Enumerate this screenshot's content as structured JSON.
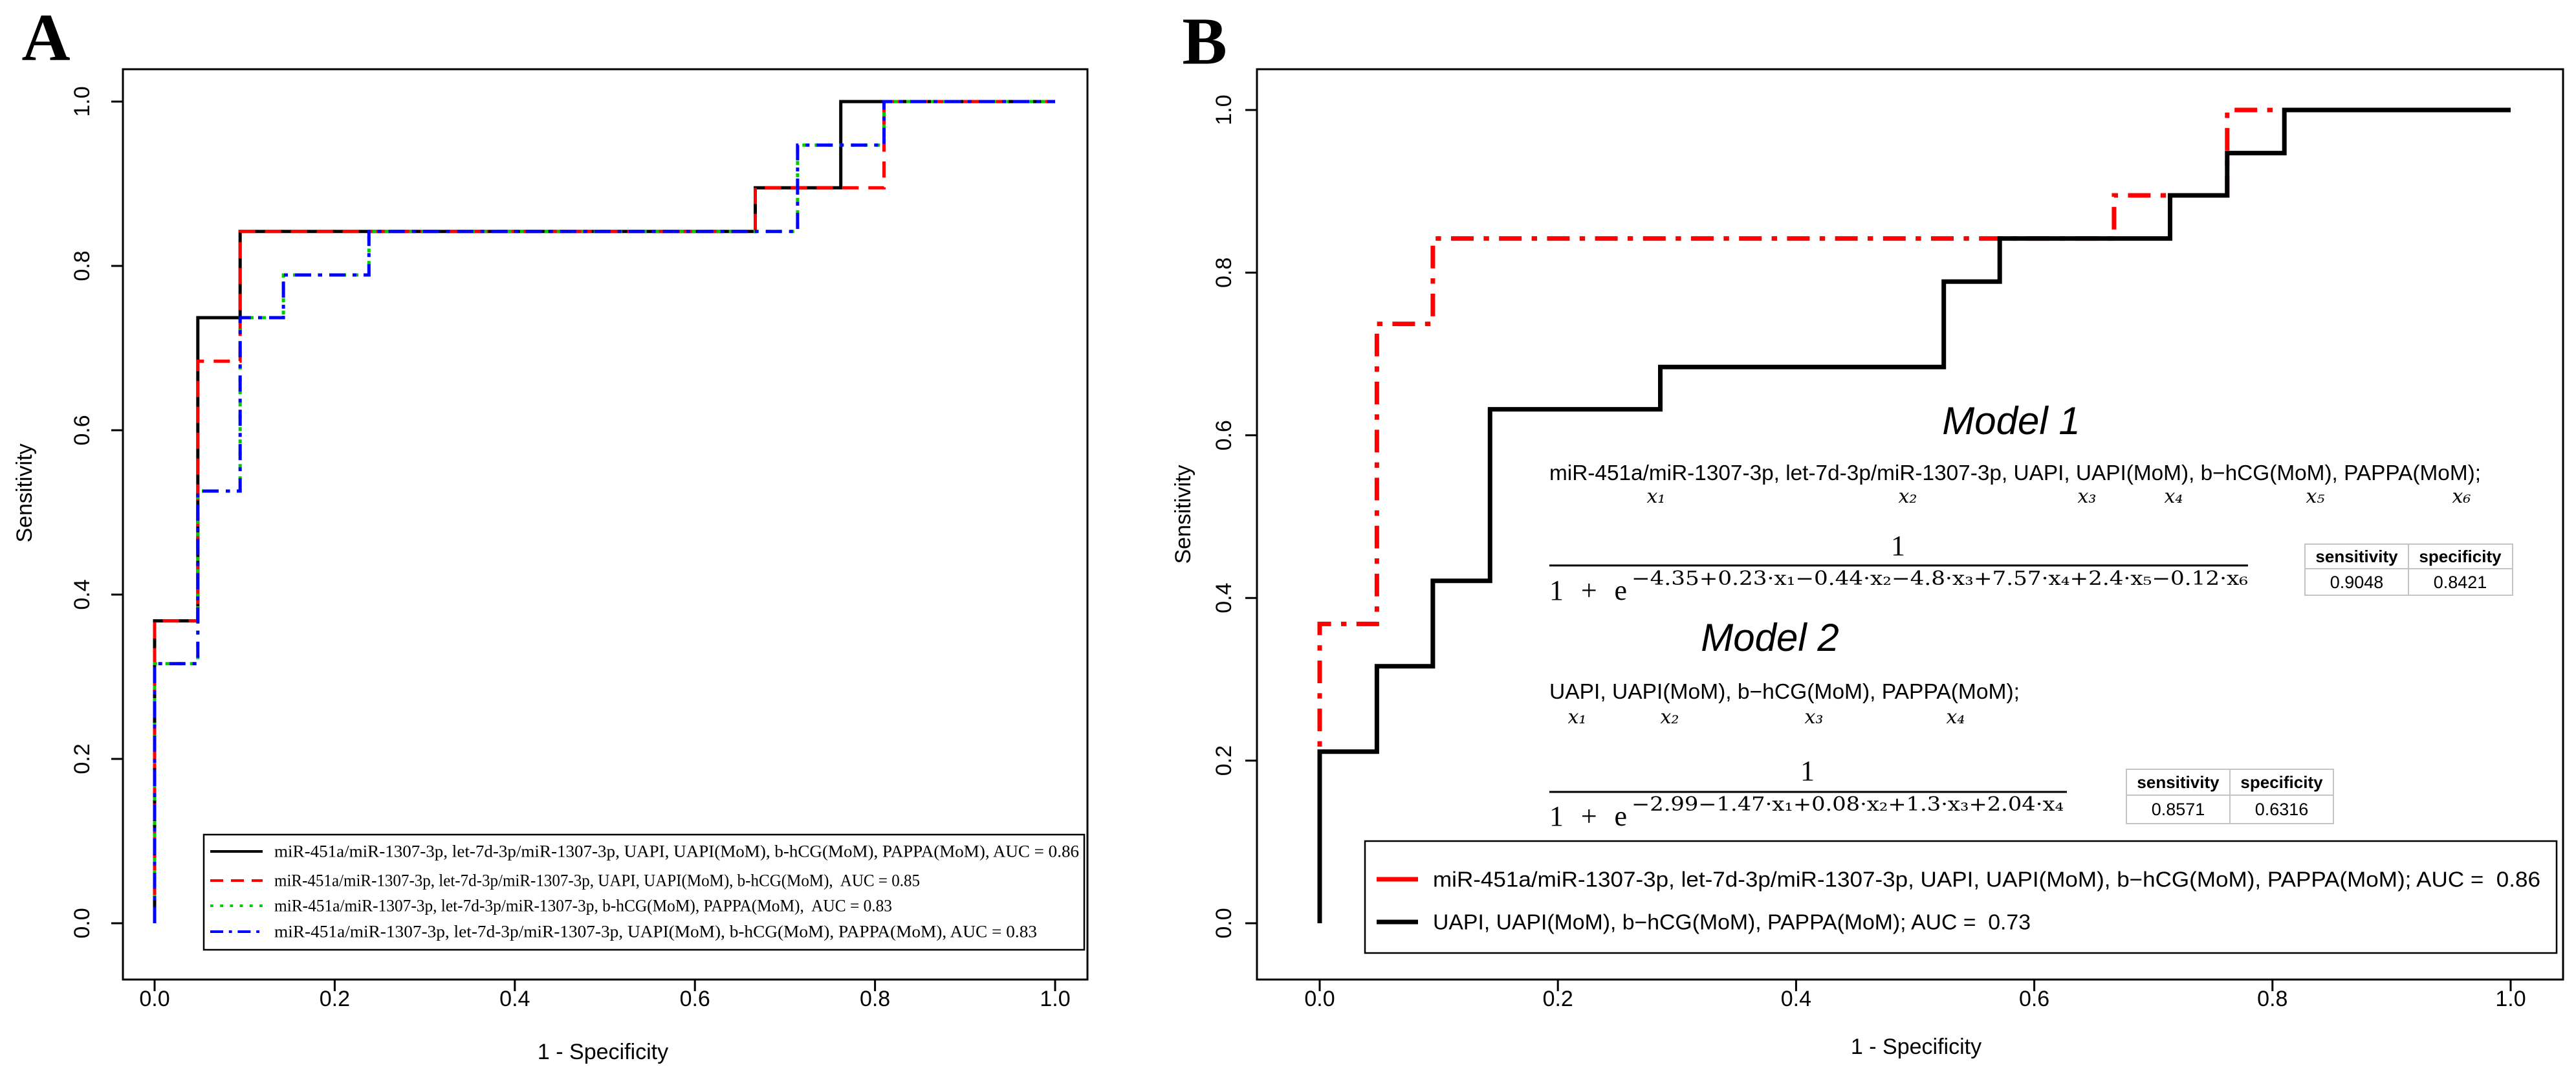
{
  "chart_data": [
    {
      "panel_label": "A",
      "type": "line",
      "title": "",
      "xlabel": "1 - Specificity",
      "ylabel": "Sensitivity",
      "xlim": [
        0,
        1
      ],
      "ylim": [
        0,
        1
      ],
      "xticks": [
        "0.0",
        "0.2",
        "0.4",
        "0.6",
        "0.8",
        "1.0"
      ],
      "yticks": [
        "0.0",
        "0.2",
        "0.4",
        "0.6",
        "0.8",
        "1.0"
      ],
      "grid": false,
      "legend_position": "bottom-right",
      "series": [
        {
          "name": "miR-451a/miR-1307-3p, let-7d-3p/miR-1307-3p, UAPI, UAPI(MoM), b-hCG(MoM), PAPPA(MoM), AUC = 0.86",
          "auc": 0.86,
          "color": "#000000",
          "style": "solid",
          "points": [
            [
              0,
              0
            ],
            [
              0,
              0.368
            ],
            [
              0.048,
              0.368
            ],
            [
              0.048,
              0.737
            ],
            [
              0.095,
              0.737
            ],
            [
              0.095,
              0.842
            ],
            [
              0.667,
              0.842
            ],
            [
              0.667,
              0.895
            ],
            [
              0.762,
              0.895
            ],
            [
              0.762,
              1
            ],
            [
              1,
              1
            ]
          ]
        },
        {
          "name": "miR-451a/miR-1307-3p, let-7d-3p/miR-1307-3p, UAPI, UAPI(MoM), b-hCG(MoM),  AUC = 0.85",
          "auc": 0.85,
          "color": "#ff0000",
          "style": "dashed",
          "points": [
            [
              0,
              0
            ],
            [
              0,
              0.368
            ],
            [
              0.048,
              0.368
            ],
            [
              0.048,
              0.684
            ],
            [
              0.095,
              0.684
            ],
            [
              0.095,
              0.842
            ],
            [
              0.667,
              0.842
            ],
            [
              0.667,
              0.895
            ],
            [
              0.81,
              0.895
            ],
            [
              0.81,
              1
            ],
            [
              1,
              1
            ]
          ]
        },
        {
          "name": "miR-451a/miR-1307-3p, let-7d-3p/miR-1307-3p, b-hCG(MoM), PAPPA(MoM),  AUC = 0.83",
          "auc": 0.83,
          "color": "#00cd00",
          "style": "dotted",
          "points": [
            [
              0,
              0
            ],
            [
              0,
              0.316
            ],
            [
              0.048,
              0.316
            ],
            [
              0.048,
              0.526
            ],
            [
              0.095,
              0.526
            ],
            [
              0.095,
              0.737
            ],
            [
              0.143,
              0.737
            ],
            [
              0.143,
              0.789
            ],
            [
              0.238,
              0.789
            ],
            [
              0.238,
              0.842
            ],
            [
              0.714,
              0.842
            ],
            [
              0.714,
              0.947
            ],
            [
              0.81,
              0.947
            ],
            [
              0.81,
              1
            ],
            [
              1,
              1
            ]
          ]
        },
        {
          "name": "miR-451a/miR-1307-3p, let-7d-3p/miR-1307-3p, UAPI(MoM), b-hCG(MoM), PAPPA(MoM), AUC = 0.83",
          "auc": 0.83,
          "color": "#0000ff",
          "style": "dotdash",
          "points": [
            [
              0,
              0
            ],
            [
              0,
              0.316
            ],
            [
              0.048,
              0.316
            ],
            [
              0.048,
              0.526
            ],
            [
              0.095,
              0.526
            ],
            [
              0.095,
              0.737
            ],
            [
              0.143,
              0.737
            ],
            [
              0.143,
              0.789
            ],
            [
              0.238,
              0.789
            ],
            [
              0.238,
              0.842
            ],
            [
              0.714,
              0.842
            ],
            [
              0.714,
              0.947
            ],
            [
              0.81,
              0.947
            ],
            [
              0.81,
              1
            ],
            [
              1,
              1
            ]
          ]
        }
      ]
    },
    {
      "panel_label": "B",
      "type": "line",
      "title": "",
      "xlabel": "1 - Specificity",
      "ylabel": "Sensitivity",
      "xlim": [
        0,
        1
      ],
      "ylim": [
        0,
        1
      ],
      "xticks": [
        "0.0",
        "0.2",
        "0.4",
        "0.6",
        "0.8",
        "1.0"
      ],
      "yticks": [
        "0.0",
        "0.2",
        "0.4",
        "0.6",
        "0.8",
        "1.0"
      ],
      "grid": false,
      "legend_position": "bottom-right",
      "series": [
        {
          "name": "miR-451a/miR-1307-3p, let-7d-3p/miR-1307-3p, UAPI, UAPI(MoM), b−hCG(MoM), PAPPA(MoM); AUC =  0.86",
          "auc": 0.86,
          "color": "#ff0000",
          "style": "dotdash",
          "legend_style": "solid",
          "points": [
            [
              0,
              0
            ],
            [
              0,
              0.368
            ],
            [
              0.048,
              0.368
            ],
            [
              0.048,
              0.737
            ],
            [
              0.095,
              0.737
            ],
            [
              0.095,
              0.842
            ],
            [
              0.667,
              0.842
            ],
            [
              0.667,
              0.895
            ],
            [
              0.762,
              0.895
            ],
            [
              0.762,
              1
            ],
            [
              1,
              1
            ]
          ]
        },
        {
          "name": "UAPI, UAPI(MoM), b−hCG(MoM), PAPPA(MoM); AUC =  0.73",
          "auc": 0.73,
          "color": "#000000",
          "style": "solid",
          "points": [
            [
              0,
              0
            ],
            [
              0,
              0.211
            ],
            [
              0.048,
              0.211
            ],
            [
              0.048,
              0.316
            ],
            [
              0.095,
              0.316
            ],
            [
              0.095,
              0.421
            ],
            [
              0.143,
              0.421
            ],
            [
              0.143,
              0.632
            ],
            [
              0.286,
              0.632
            ],
            [
              0.286,
              0.684
            ],
            [
              0.524,
              0.684
            ],
            [
              0.524,
              0.789
            ],
            [
              0.571,
              0.789
            ],
            [
              0.571,
              0.842
            ],
            [
              0.714,
              0.842
            ],
            [
              0.714,
              0.895
            ],
            [
              0.762,
              0.895
            ],
            [
              0.762,
              0.947
            ],
            [
              0.81,
              0.947
            ],
            [
              0.81,
              1
            ],
            [
              1,
              1
            ]
          ]
        }
      ]
    }
  ],
  "annotations": {
    "model_1": {
      "title": "Model 1",
      "color": "#e8312a",
      "variables": "miR-451a/miR-1307-3p, let-7d-3p/miR-1307-3p, UAPI, UAPI(MoM), b−hCG(MoM), PAPPA(MoM);",
      "variable_symbols": [
        "x₁",
        "x₂",
        "x₃",
        "x₄",
        "x₅",
        "x₆"
      ],
      "formula": {
        "numerator": "1",
        "denominator_base": "1 + e",
        "exponent": "−4.35+0.23·x₁−0.44·x₂−4.8·x₃+7.57·x₄+2.4·x₅−0.12·x₆"
      },
      "table": {
        "headers": [
          "sensitivity",
          "specificity"
        ],
        "values": [
          "0.9048",
          "0.8421"
        ]
      }
    },
    "model_2": {
      "title": "Model 2",
      "color": "#000000",
      "variables": "UAPI, UAPI(MoM), b−hCG(MoM), PAPPA(MoM);",
      "variable_symbols": [
        "x₁",
        "x₂",
        "x₃",
        "x₄"
      ],
      "formula": {
        "numerator": "1",
        "denominator_base": "1 + e",
        "exponent": "−2.99−1.47·x₁+0.08·x₂+1.3·x₃+2.04·x₄"
      },
      "table": {
        "headers": [
          "sensitivity",
          "specificity"
        ],
        "values": [
          "0.8571",
          "0.6316"
        ]
      }
    }
  }
}
